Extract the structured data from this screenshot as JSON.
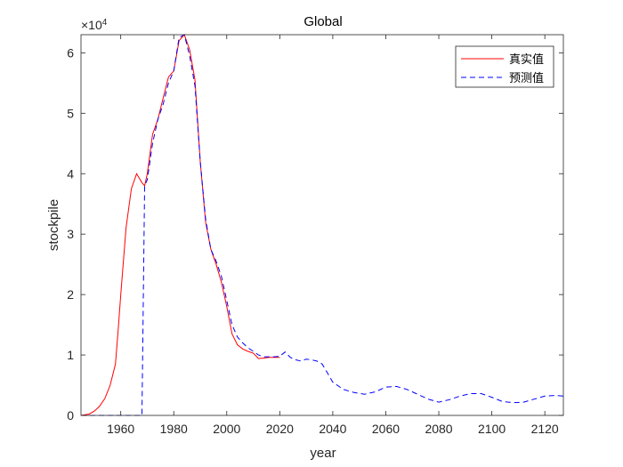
{
  "chart_data": {
    "type": "line",
    "title": "Global",
    "xlabel": "year",
    "ylabel": "stockpile",
    "y_exponent_label": "×10",
    "y_exponent_power": "4",
    "xlim": [
      1945,
      2127
    ],
    "ylim": [
      0,
      63000
    ],
    "x_ticks": [
      1960,
      1980,
      2000,
      2020,
      2040,
      2060,
      2080,
      2100,
      2120
    ],
    "y_ticks": [
      0,
      10000,
      20000,
      30000,
      40000,
      50000,
      60000
    ],
    "y_tick_labels": [
      "0",
      "1",
      "2",
      "3",
      "4",
      "5",
      "6"
    ],
    "x_tick_labels": [
      "1960",
      "1980",
      "2000",
      "2020",
      "2040",
      "2060",
      "2080",
      "2100",
      "2120"
    ],
    "grid": false,
    "legend_position": "top-right",
    "series": [
      {
        "name": "真实值",
        "color": "#ff0000",
        "style": "solid",
        "x": [
          1945,
          1948,
          1950,
          1952,
          1954,
          1956,
          1958,
          1959,
          1960,
          1962,
          1964,
          1966,
          1968,
          1969,
          1970,
          1972,
          1974,
          1976,
          1978,
          1980,
          1982,
          1984,
          1986,
          1988,
          1990,
          1992,
          1994,
          1996,
          1998,
          2000,
          2002,
          2004,
          2006,
          2008,
          2010,
          2012,
          2014,
          2016,
          2018,
          2020
        ],
        "y": [
          0,
          200,
          700,
          1500,
          2800,
          5000,
          8500,
          14000,
          20000,
          31000,
          37500,
          40000,
          38500,
          38000,
          40000,
          46500,
          49000,
          52500,
          56000,
          57000,
          62000,
          63000,
          60500,
          55500,
          42000,
          32000,
          27500,
          25000,
          22000,
          18000,
          13500,
          11700,
          11000,
          10600,
          10300,
          9400,
          9500,
          9600,
          9600,
          9600
        ]
      },
      {
        "name": "预测值",
        "color": "#0000ff",
        "style": "dashed",
        "x": [
          1945,
          1966,
          1968,
          1969,
          1970,
          1972,
          1974,
          1976,
          1978,
          1980,
          1982,
          1984,
          1986,
          1988,
          1990,
          1992,
          1994,
          1996,
          1998,
          2000,
          2002,
          2004,
          2006,
          2008,
          2010,
          2012,
          2014,
          2016,
          2018,
          2020,
          2022,
          2024,
          2026,
          2028,
          2030,
          2032,
          2034,
          2036,
          2038,
          2040,
          2044,
          2048,
          2052,
          2056,
          2060,
          2064,
          2068,
          2072,
          2076,
          2080,
          2084,
          2088,
          2092,
          2096,
          2100,
          2104,
          2108,
          2112,
          2116,
          2120,
          2124,
          2127
        ],
        "y": [
          0,
          0,
          0,
          38000,
          39000,
          45000,
          49000,
          51500,
          55000,
          57000,
          62500,
          63000,
          59500,
          54500,
          42000,
          32500,
          27500,
          25500,
          23000,
          19000,
          15000,
          13000,
          12000,
          11200,
          10600,
          10000,
          9700,
          9700,
          9700,
          9800,
          10500,
          9600,
          9200,
          9000,
          9300,
          9200,
          9000,
          8500,
          7000,
          5500,
          4300,
          3800,
          3500,
          3900,
          4700,
          4800,
          4300,
          3500,
          2700,
          2200,
          2600,
          3200,
          3600,
          3600,
          3000,
          2300,
          2100,
          2200,
          2700,
          3200,
          3300,
          3200
        ]
      }
    ]
  }
}
